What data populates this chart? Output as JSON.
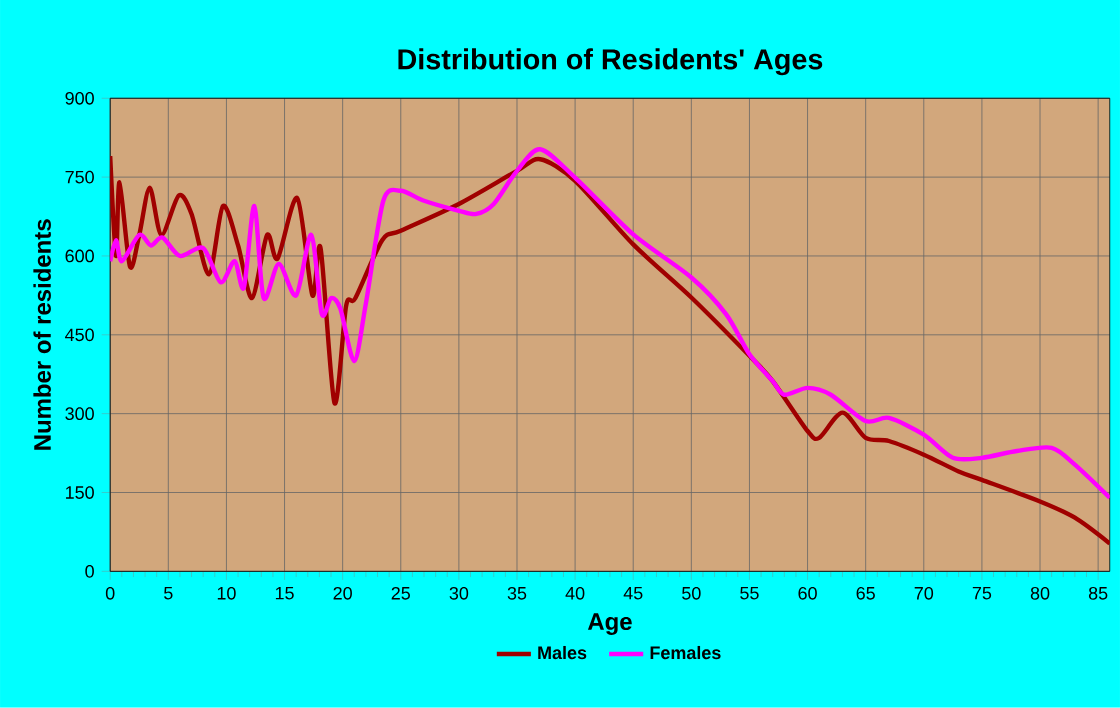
{
  "chart_data": {
    "type": "line",
    "title": "Distribution of Residents' Ages",
    "xlabel": "Age",
    "ylabel": "Number of residents",
    "xlim": [
      0,
      86
    ],
    "ylim": [
      0,
      900
    ],
    "xticks": [
      0,
      5,
      10,
      15,
      20,
      25,
      30,
      35,
      40,
      45,
      50,
      55,
      60,
      65,
      70,
      75,
      80,
      85
    ],
    "yticks": [
      0,
      150,
      300,
      450,
      600,
      750,
      900
    ],
    "grid": true,
    "legend": "bottom",
    "line_style": "solid",
    "marker": "none",
    "series": [
      {
        "name": "Males",
        "color": "#a00000",
        "x": [
          0,
          0.5,
          0.8,
          1.7,
          2.5,
          3.4,
          4.4,
          5.9,
          7,
          8.5,
          9.7,
          11,
          12.2,
          13.5,
          14.4,
          16.1,
          17.4,
          18.1,
          19.3,
          20.3,
          21.1,
          23.4,
          25,
          30,
          35,
          37,
          40,
          45,
          50,
          55,
          57,
          60,
          61,
          63,
          65,
          67,
          70,
          73,
          75,
          80,
          83,
          86
        ],
        "values": [
          790,
          600,
          740,
          580,
          640,
          730,
          640,
          715,
          680,
          565,
          695,
          620,
          520,
          640,
          595,
          710,
          525,
          615,
          320,
          505,
          520,
          630,
          648,
          699,
          762,
          784,
          743,
          622,
          521,
          410,
          362,
          267,
          254,
          302,
          254,
          248,
          222,
          190,
          174,
          133,
          102,
          53
        ]
      },
      {
        "name": "Females",
        "color": "#ff00ff",
        "x": [
          0,
          0.5,
          1,
          2.5,
          3.5,
          4.5,
          6,
          8,
          9.5,
          10.7,
          11.5,
          12.4,
          13.2,
          14.5,
          16,
          17.3,
          18.2,
          19,
          19.8,
          21,
          22,
          23.5,
          25,
          27,
          30,
          31.5,
          33,
          35,
          37,
          40,
          45,
          50,
          53,
          55,
          57,
          58,
          60,
          62,
          65,
          67,
          70,
          72.5,
          75,
          78,
          81,
          83,
          86
        ],
        "values": [
          590,
          630,
          590,
          640,
          620,
          635,
          600,
          615,
          550,
          590,
          540,
          695,
          520,
          585,
          525,
          640,
          490,
          520,
          500,
          400,
          510,
          705,
          724,
          705,
          686,
          680,
          699,
          762,
          803,
          749,
          641,
          559,
          489,
          413,
          362,
          336,
          349,
          336,
          286,
          292,
          260,
          216,
          216,
          229,
          235,
          203,
          140
        ]
      }
    ]
  }
}
